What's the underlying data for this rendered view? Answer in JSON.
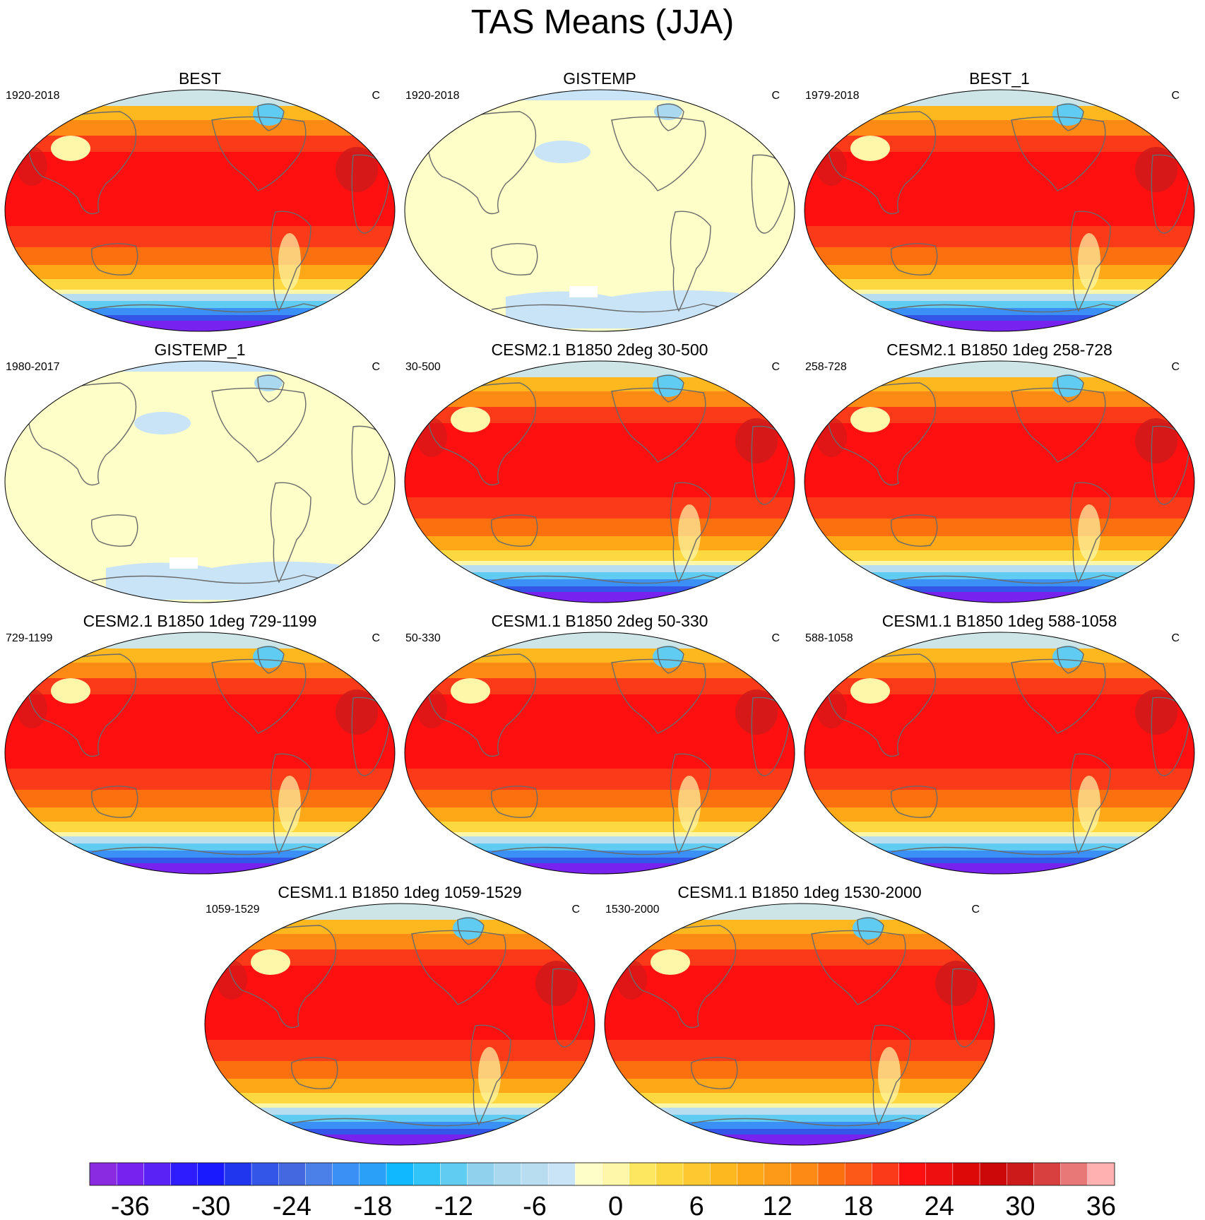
{
  "title": "TAS Means (JJA)",
  "panels": [
    {
      "title": "BEST",
      "period": "1920-2018",
      "unit": "C",
      "style": "warm"
    },
    {
      "title": "GISTEMP",
      "period": "1920-2018",
      "unit": "C",
      "style": "pale"
    },
    {
      "title": "BEST_1",
      "period": "1979-2018",
      "unit": "C",
      "style": "warm"
    },
    {
      "title": "GISTEMP_1",
      "period": "1980-2017",
      "unit": "C",
      "style": "pale"
    },
    {
      "title": "CESM2.1 B1850 2deg 30-500",
      "period": "30-500",
      "unit": "C",
      "style": "warm"
    },
    {
      "title": "CESM2.1 B1850 1deg 258-728",
      "period": "258-728",
      "unit": "C",
      "style": "warm"
    },
    {
      "title": "CESM2.1 B1850 1deg 729-1199",
      "period": "729-1199",
      "unit": "C",
      "style": "warm"
    },
    {
      "title": "CESM1.1 B1850 2deg 50-330",
      "period": "50-330",
      "unit": "C",
      "style": "warm"
    },
    {
      "title": "CESM1.1 B1850 1deg 588-1058",
      "period": "588-1058",
      "unit": "C",
      "style": "warm"
    },
    {
      "title": "CESM1.1 B1850 1deg 1059-1529",
      "period": "1059-1529",
      "unit": "C",
      "style": "warm"
    },
    {
      "title": "CESM1.1 B1850 1deg 1530-2000",
      "period": "1530-2000",
      "unit": "C",
      "style": "warm"
    }
  ],
  "colorbar": {
    "tick_labels": [
      "-36",
      "-30",
      "-24",
      "-18",
      "-12",
      "-6",
      "0",
      "6",
      "12",
      "18",
      "24",
      "30",
      "36"
    ],
    "colors": [
      "#8a2be2",
      "#7722ee",
      "#5a22f5",
      "#2e1cff",
      "#1a1aff",
      "#2035ee",
      "#3355e8",
      "#4468e0",
      "#4a80e8",
      "#3a90f5",
      "#2aa0f8",
      "#10b8ff",
      "#30c4f8",
      "#60ccf2",
      "#90d2ee",
      "#aad8ee",
      "#b8dcf0",
      "#c8e4f6",
      "#fefec8",
      "#fef6a8",
      "#fee760",
      "#fed840",
      "#fec830",
      "#fdb820",
      "#fea818",
      "#fd9a18",
      "#fd8a15",
      "#fc7010",
      "#fc5818",
      "#fa3a18",
      "#ff1010",
      "#ee1010",
      "#dd0808",
      "#cc0808",
      "#cc1a1a",
      "#d84040",
      "#e87878",
      "#ffb0b0"
    ]
  },
  "chart_data": {
    "type": "heatmap",
    "title": "TAS Means (JJA)",
    "variable": "TAS",
    "season": "JJA",
    "units": "C",
    "projection": "Robinson, Pacific-centered",
    "colorbar_levels": {
      "min": -39,
      "max": 39,
      "step": 2
    },
    "colorbar_ticks": [
      -36,
      -30,
      -24,
      -18,
      -12,
      -6,
      0,
      6,
      12,
      18,
      24,
      30,
      36
    ],
    "panels": [
      {
        "name": "BEST",
        "period": "1920-2018"
      },
      {
        "name": "GISTEMP",
        "period": "1920-2018"
      },
      {
        "name": "BEST_1",
        "period": "1979-2018"
      },
      {
        "name": "GISTEMP_1",
        "period": "1980-2017"
      },
      {
        "name": "CESM2.1 B1850 2deg 30-500",
        "period": "30-500"
      },
      {
        "name": "CESM2.1 B1850 1deg 258-728",
        "period": "258-728"
      },
      {
        "name": "CESM2.1 B1850 1deg 729-1199",
        "period": "729-1199"
      },
      {
        "name": "CESM1.1 B1850 2deg 50-330",
        "period": "50-330"
      },
      {
        "name": "CESM1.1 B1850 1deg 588-1058",
        "period": "588-1058"
      },
      {
        "name": "CESM1.1 B1850 1deg 1059-1529",
        "period": "1059-1529"
      },
      {
        "name": "CESM1.1 B1850 1deg 1530-2000",
        "period": "1530-2000"
      }
    ]
  }
}
